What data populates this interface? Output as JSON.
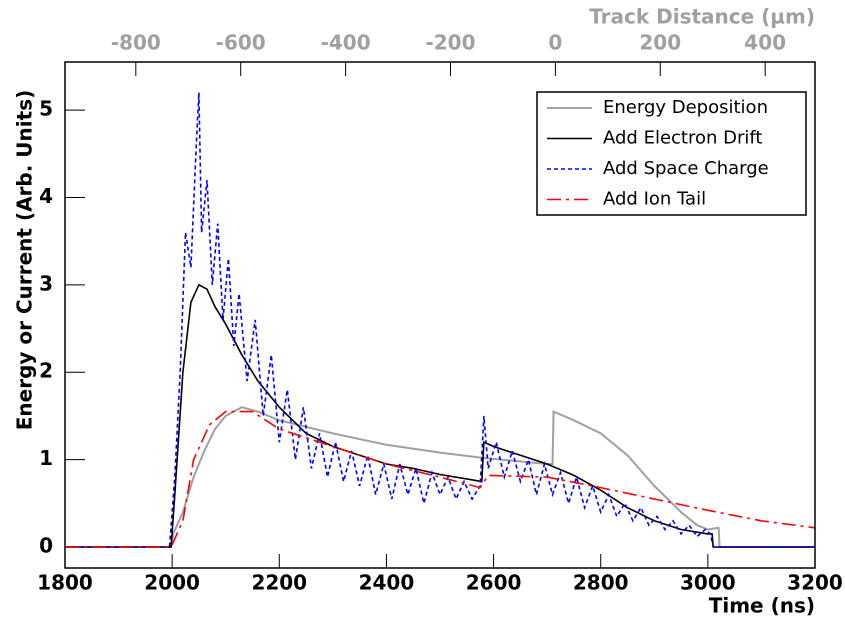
{
  "chart_data": {
    "type": "line",
    "xlabel": "Time (ns)",
    "ylabel": "Energy or Current (Arb. Units)",
    "x2label": "Track Distance (µm)",
    "xlim": [
      1800,
      3200
    ],
    "xticks": [
      1800,
      2000,
      2200,
      2400,
      2600,
      2800,
      3000,
      3200
    ],
    "ylim": [
      -0.24,
      5.55
    ],
    "yticks": [
      0,
      1,
      2,
      3,
      4,
      5
    ],
    "x2lim": [
      -935,
      495
    ],
    "x2ticks": [
      -800,
      -600,
      -400,
      -200,
      0,
      200,
      400
    ],
    "legend": "upper right",
    "series": [
      {
        "name": "Energy Deposition",
        "color": "#a0a0a0",
        "dash": "solid",
        "x": [
          1800,
          1998,
          2002,
          2020,
          2040,
          2060,
          2080,
          2100,
          2130,
          2160,
          2200,
          2300,
          2400,
          2500,
          2580,
          2700,
          2710,
          2712,
          2750,
          2800,
          2850,
          2900,
          2950,
          2980,
          3000,
          3020,
          3022,
          3200
        ],
        "values": [
          0,
          0,
          0.15,
          0.4,
          0.8,
          1.1,
          1.35,
          1.5,
          1.6,
          1.55,
          1.45,
          1.3,
          1.17,
          1.08,
          1.02,
          0.95,
          0.95,
          1.55,
          1.45,
          1.3,
          1.05,
          0.7,
          0.4,
          0.25,
          0.2,
          0.22,
          0,
          0
        ]
      },
      {
        "name": "Add Electron Drift",
        "color": "#000000",
        "dash": "solid",
        "x": [
          1800,
          1998,
          2005,
          2020,
          2035,
          2050,
          2065,
          2080,
          2100,
          2130,
          2160,
          2200,
          2250,
          2300,
          2350,
          2400,
          2450,
          2500,
          2550,
          2578,
          2582,
          2600,
          2650,
          2700,
          2750,
          2800,
          2850,
          2900,
          2950,
          3000,
          3008,
          3010,
          3200
        ],
        "values": [
          0,
          0,
          0.6,
          2.0,
          2.8,
          3.0,
          2.95,
          2.75,
          2.55,
          2.2,
          1.9,
          1.6,
          1.3,
          1.15,
          1.05,
          0.95,
          0.9,
          0.83,
          0.78,
          0.75,
          1.2,
          1.15,
          1.05,
          0.95,
          0.82,
          0.65,
          0.45,
          0.3,
          0.2,
          0.15,
          0.15,
          0,
          0
        ]
      },
      {
        "name": "Add Space Charge",
        "color": "#0000ff",
        "dash": "short",
        "x": [
          1800,
          1995,
          2005,
          2015,
          2025,
          2035,
          2045,
          2050,
          2055,
          2065,
          2075,
          2085,
          2095,
          2105,
          2115,
          2125,
          2140,
          2155,
          2170,
          2185,
          2200,
          2215,
          2230,
          2245,
          2260,
          2275,
          2290,
          2305,
          2320,
          2335,
          2350,
          2365,
          2380,
          2395,
          2410,
          2425,
          2440,
          2455,
          2470,
          2485,
          2500,
          2515,
          2530,
          2545,
          2560,
          2575,
          2582,
          2590,
          2605,
          2620,
          2635,
          2650,
          2665,
          2680,
          2695,
          2710,
          2725,
          2740,
          2755,
          2770,
          2785,
          2800,
          2815,
          2830,
          2845,
          2860,
          2875,
          2890,
          2905,
          2920,
          2935,
          2950,
          2965,
          2980,
          2995,
          3005,
          3010,
          3200
        ],
        "values": [
          0,
          0,
          0.8,
          2.0,
          3.6,
          3.2,
          4.6,
          5.2,
          3.6,
          4.2,
          3.0,
          3.7,
          2.6,
          3.3,
          2.3,
          2.9,
          1.9,
          2.6,
          1.5,
          2.2,
          1.2,
          1.8,
          1.0,
          1.6,
          0.9,
          1.3,
          0.8,
          1.2,
          0.75,
          1.1,
          0.7,
          1.05,
          0.6,
          0.95,
          0.55,
          0.95,
          0.6,
          0.9,
          0.5,
          0.85,
          0.6,
          0.8,
          0.55,
          0.75,
          0.55,
          0.7,
          1.5,
          0.9,
          1.2,
          0.8,
          1.1,
          0.75,
          1.0,
          0.6,
          0.95,
          0.6,
          0.85,
          0.5,
          0.8,
          0.45,
          0.7,
          0.4,
          0.6,
          0.35,
          0.5,
          0.3,
          0.45,
          0.25,
          0.35,
          0.2,
          0.3,
          0.15,
          0.25,
          0.12,
          0.2,
          0.15,
          0,
          0
        ]
      },
      {
        "name": "Add Ion Tail",
        "color": "#ff0000",
        "dash": "long",
        "x": [
          1800,
          1998,
          2020,
          2040,
          2070,
          2100,
          2150,
          2200,
          2300,
          2400,
          2500,
          2575,
          2590,
          2700,
          2800,
          2900,
          3000,
          3100,
          3200
        ],
        "values": [
          0,
          0,
          0.3,
          1.0,
          1.4,
          1.55,
          1.55,
          1.35,
          1.15,
          0.95,
          0.8,
          0.68,
          0.82,
          0.8,
          0.68,
          0.55,
          0.42,
          0.3,
          0.22
        ]
      }
    ]
  }
}
